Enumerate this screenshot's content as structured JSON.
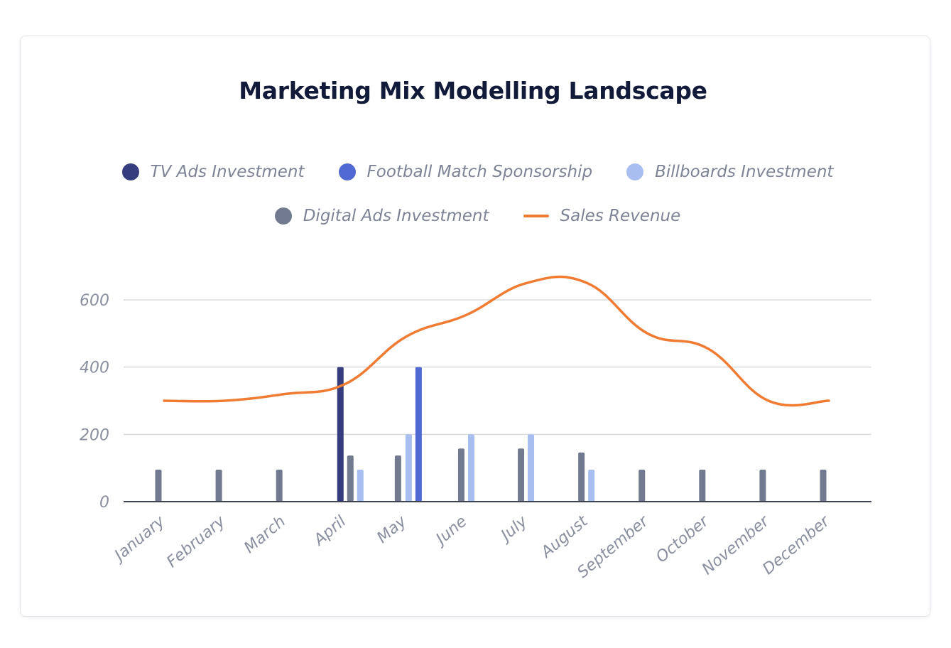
{
  "chart_data": {
    "type": "bar",
    "title": "Marketing Mix Modelling Landscape",
    "xlabel": "",
    "ylabel": "",
    "ylim": [
      0,
      700
    ],
    "yticks": [
      0,
      200,
      400,
      600
    ],
    "grid": true,
    "legend_placement": "top-center",
    "categories": [
      "January",
      "February",
      "March",
      "April",
      "May",
      "June",
      "July",
      "August",
      "September",
      "October",
      "November",
      "December"
    ],
    "series": [
      {
        "name": "TV Ads Investment",
        "type": "bar",
        "color": "#363d7e",
        "values": [
          0,
          0,
          0,
          400,
          0,
          0,
          0,
          0,
          0,
          0,
          0,
          0
        ]
      },
      {
        "name": "Digital Ads Investment",
        "type": "bar",
        "color": "#717a8e",
        "values": [
          95,
          95,
          95,
          137,
          137,
          158,
          158,
          146,
          95,
          95,
          95,
          95
        ]
      },
      {
        "name": "Billboards Investment",
        "type": "bar",
        "color": "#a9bef0",
        "values": [
          0,
          0,
          0,
          95,
          200,
          200,
          200,
          95,
          0,
          0,
          0,
          0
        ]
      },
      {
        "name": "Football Match Sponsorship",
        "type": "bar",
        "color": "#5169d2",
        "values": [
          0,
          0,
          0,
          0,
          400,
          0,
          0,
          0,
          0,
          0,
          0,
          0
        ]
      },
      {
        "name": "Sales Revenue",
        "type": "line",
        "color": "#f07c34",
        "values": [
          300,
          300,
          320,
          350,
          490,
          555,
          650,
          650,
          500,
          455,
          300,
          300
        ]
      }
    ]
  },
  "legend": [
    {
      "label": "TV Ads Investment",
      "color": "#363d7e",
      "marker": "dot"
    },
    {
      "label": "Football Match Sponsorship",
      "color": "#5169d2",
      "marker": "dot"
    },
    {
      "label": "Billboards Investment",
      "color": "#a9bef0",
      "marker": "dot"
    },
    {
      "label": "Digital Ads Investment",
      "color": "#717a8e",
      "marker": "dot"
    },
    {
      "label": "Sales Revenue",
      "color": "#f07c34",
      "marker": "line"
    }
  ]
}
